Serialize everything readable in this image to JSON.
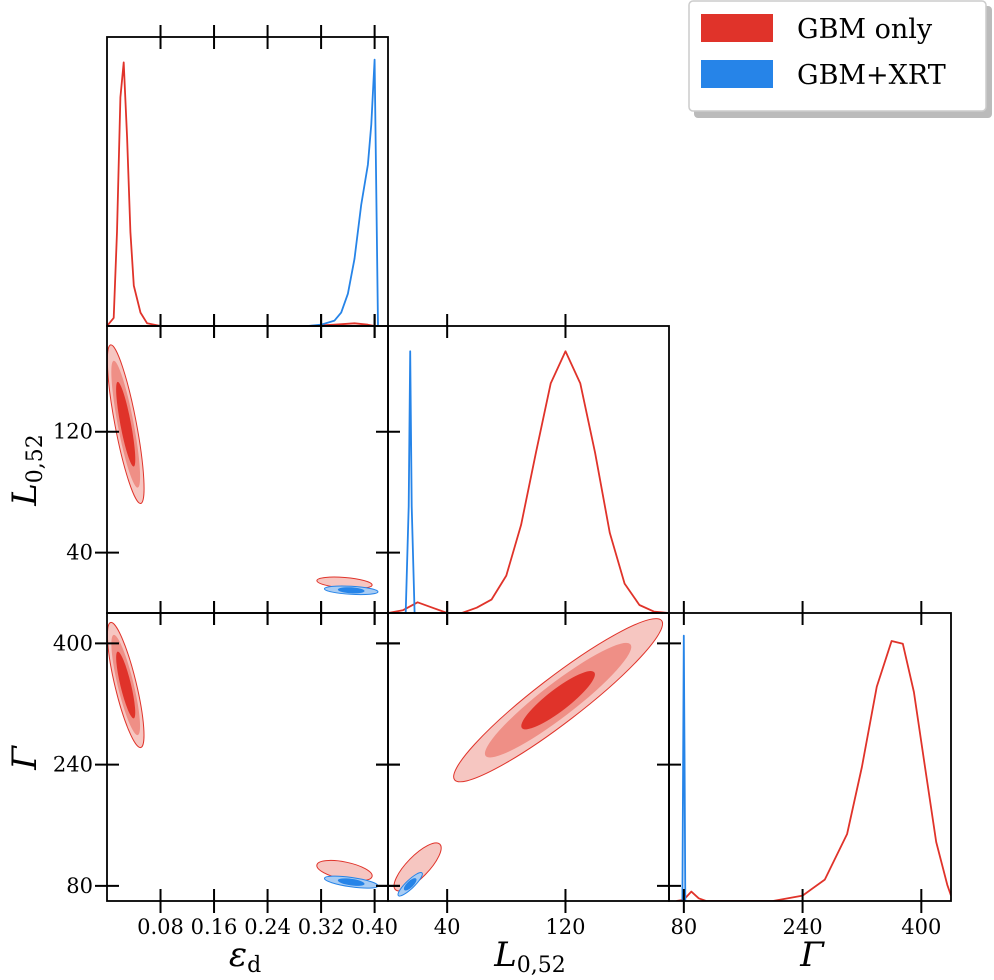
{
  "legend": [
    {
      "label": "GBM only",
      "color": "#e0332a"
    },
    {
      "label": "GBM+XRT",
      "color": "#2684e8"
    }
  ],
  "colors": {
    "red_line": "#e0332a",
    "red_light": "#f6c6c1",
    "red_mid": "#ef8f86",
    "red_dark": "#e0332a",
    "blue_line": "#2684e8",
    "blue_light": "#a9ccf3",
    "blue_dark": "#2684e8"
  },
  "chart_data": {
    "type": "corner",
    "parameters": [
      {
        "key": "eps",
        "label": "ε",
        "subscript": "d",
        "range": [
          0.0,
          0.42
        ],
        "ticks": [
          0.08,
          0.16,
          0.24,
          0.32,
          0.4
        ],
        "tick_labels": [
          "0.08",
          "0.16",
          "0.24",
          "0.32",
          "0.40"
        ]
      },
      {
        "key": "L",
        "label": "L",
        "subscript": "0,52",
        "range": [
          0.0,
          190.0
        ],
        "ticks": [
          40,
          120
        ],
        "tick_labels": [
          "40",
          "120"
        ]
      },
      {
        "key": "G",
        "label": "Γ",
        "subscript": "",
        "range": [
          60.0,
          440.0
        ],
        "ticks": [
          80,
          240,
          400
        ],
        "tick_labels": [
          "80",
          "240",
          "400"
        ]
      }
    ],
    "series": [
      {
        "name": "GBM only",
        "color": "#e0332a",
        "marginals": {
          "eps": [
            [
              0.0,
              0.0
            ],
            [
              0.01,
              0.03
            ],
            [
              0.015,
              0.35
            ],
            [
              0.02,
              0.85
            ],
            [
              0.025,
              0.98
            ],
            [
              0.03,
              0.7
            ],
            [
              0.035,
              0.35
            ],
            [
              0.04,
              0.15
            ],
            [
              0.05,
              0.05
            ],
            [
              0.06,
              0.01
            ],
            [
              0.08,
              0.0
            ],
            [
              0.3,
              0.0
            ],
            [
              0.34,
              0.005
            ],
            [
              0.37,
              0.01
            ],
            [
              0.39,
              0.005
            ],
            [
              0.4,
              0.0
            ]
          ],
          "L": [
            [
              0,
              0.0
            ],
            [
              10,
              0.01
            ],
            [
              20,
              0.04
            ],
            [
              30,
              0.02
            ],
            [
              40,
              0.0
            ],
            [
              50,
              0.0
            ],
            [
              60,
              0.02
            ],
            [
              70,
              0.05
            ],
            [
              80,
              0.14
            ],
            [
              90,
              0.33
            ],
            [
              100,
              0.6
            ],
            [
              110,
              0.86
            ],
            [
              120,
              0.98
            ],
            [
              130,
              0.86
            ],
            [
              140,
              0.6
            ],
            [
              150,
              0.3
            ],
            [
              160,
              0.11
            ],
            [
              170,
              0.03
            ],
            [
              180,
              0.005
            ],
            [
              190,
              0.0
            ]
          ],
          "G": [
            [
              70,
              0.0
            ],
            [
              80,
              0.005
            ],
            [
              90,
              0.035
            ],
            [
              100,
              0.01
            ],
            [
              110,
              0.0
            ],
            [
              200,
              0.0
            ],
            [
              240,
              0.02
            ],
            [
              270,
              0.08
            ],
            [
              300,
              0.25
            ],
            [
              320,
              0.5
            ],
            [
              340,
              0.8
            ],
            [
              360,
              0.97
            ],
            [
              375,
              0.96
            ],
            [
              390,
              0.78
            ],
            [
              405,
              0.5
            ],
            [
              420,
              0.22
            ],
            [
              435,
              0.06
            ],
            [
              440,
              0.02
            ]
          ]
        },
        "joint": {
          "L_vs_eps": {
            "primary": {
              "center": [
                0.028,
                125
              ],
              "direction": [
                0.03,
                -70
              ],
              "widths": [
                0.75,
                0.6,
                0.4
              ],
              "thickness": [
                0.013,
                0.009,
                0.005
              ]
            },
            "secondary": {
              "center": [
                0.355,
                20
              ],
              "direction": [
                0.055,
                -2
              ],
              "widths": [
                0.75
              ],
              "thickness": [
                0.005
              ]
            }
          },
          "G_vs_eps": {
            "primary": {
              "center": [
                0.028,
                345
              ],
              "direction": [
                0.03,
                -110
              ],
              "widths": [
                0.75,
                0.6,
                0.4
              ],
              "thickness": [
                0.013,
                0.009,
                0.005
              ]
            },
            "secondary": {
              "center": [
                0.355,
                100
              ],
              "direction": [
                0.055,
                -10
              ],
              "widths": [
                0.75
              ],
              "thickness": [
                0.01
              ]
            }
          },
          "G_vs_L": {
            "primary": {
              "center": [
                115,
                325
              ],
              "direction": [
                70,
                105
              ],
              "widths": [
                1.0,
                0.7,
                0.35
              ],
              "thickness": [
                14,
                10,
                6
              ]
            },
            "secondary": {
              "center": [
                20,
                105
              ],
              "direction": [
                15,
                30
              ],
              "widths": [
                1.0
              ],
              "thickness": [
                6
              ]
            }
          }
        }
      },
      {
        "name": "GBM+XRT",
        "color": "#2684e8",
        "marginals": {
          "eps": [
            [
              0.3,
              0.0
            ],
            [
              0.32,
              0.005
            ],
            [
              0.34,
              0.02
            ],
            [
              0.35,
              0.05
            ],
            [
              0.36,
              0.12
            ],
            [
              0.37,
              0.25
            ],
            [
              0.38,
              0.45
            ],
            [
              0.39,
              0.6
            ],
            [
              0.395,
              0.75
            ],
            [
              0.4,
              0.99
            ],
            [
              0.405,
              0.0
            ]
          ],
          "L": [
            [
              12,
              0.0
            ],
            [
              14,
              0.4
            ],
            [
              15,
              0.98
            ],
            [
              16,
              0.4
            ],
            [
              18,
              0.0
            ]
          ],
          "G": [
            [
              78,
              0.0
            ],
            [
              79,
              0.5
            ],
            [
              80,
              0.99
            ],
            [
              81,
              0.5
            ],
            [
              82,
              0.0
            ]
          ]
        },
        "joint": {
          "L_vs_eps": {
            "primary": {
              "center": [
                0.365,
                15
              ],
              "direction": [
                0.04,
                -1
              ],
              "widths": [
                1.0,
                0.5
              ],
              "thickness": [
                0.003,
                0.0015
              ]
            }
          },
          "G_vs_eps": {
            "primary": {
              "center": [
                0.365,
                85
              ],
              "direction": [
                0.04,
                -5
              ],
              "widths": [
                1.0,
                0.5
              ],
              "thickness": [
                0.004,
                0.002
              ]
            }
          },
          "G_vs_L": {
            "primary": {
              "center": [
                15,
                82
              ],
              "direction": [
                8,
                15
              ],
              "widths": [
                1.0,
                0.5
              ],
              "thickness": [
                1.5,
                0.8
              ]
            }
          }
        }
      }
    ],
    "xlabels": [
      "ε_d",
      "L_0,52",
      "Γ"
    ],
    "ylabels": [
      "L_0,52",
      "Γ"
    ],
    "legend_position": "top-right",
    "grid": false
  }
}
